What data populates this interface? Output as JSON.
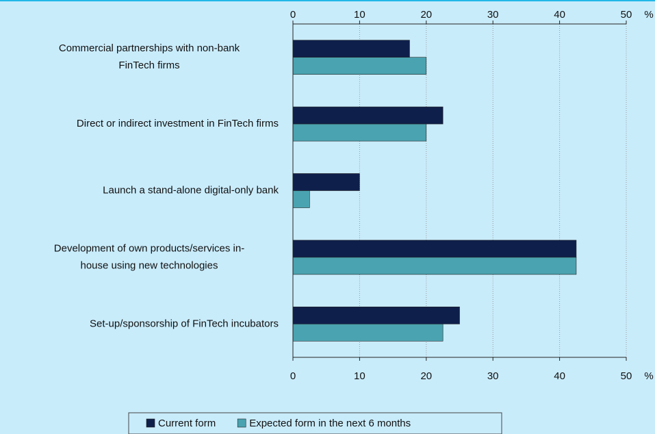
{
  "chart_data": {
    "type": "bar",
    "orientation": "horizontal",
    "categories": [
      "Commercial partnerships with non-bank\nFinTech firms",
      "Direct or indirect investment in FinTech firms",
      "Launch a stand-alone digital-only bank",
      "Development of own products/services in-\nhouse using new technologies",
      "Set-up/sponsorship of FinTech incubators"
    ],
    "series": [
      {
        "name": "Current form",
        "color": "#0f1f4b",
        "values": [
          17.5,
          22.5,
          10,
          42.5,
          25
        ]
      },
      {
        "name": "Expected form in the next 6 months",
        "color": "#4aa3b0",
        "values": [
          20,
          20,
          2.5,
          42.5,
          22.5
        ]
      }
    ],
    "xlim": [
      0,
      50
    ],
    "xticks": [
      0,
      10,
      20,
      30,
      40,
      50
    ],
    "unit": "%",
    "grid": true
  }
}
